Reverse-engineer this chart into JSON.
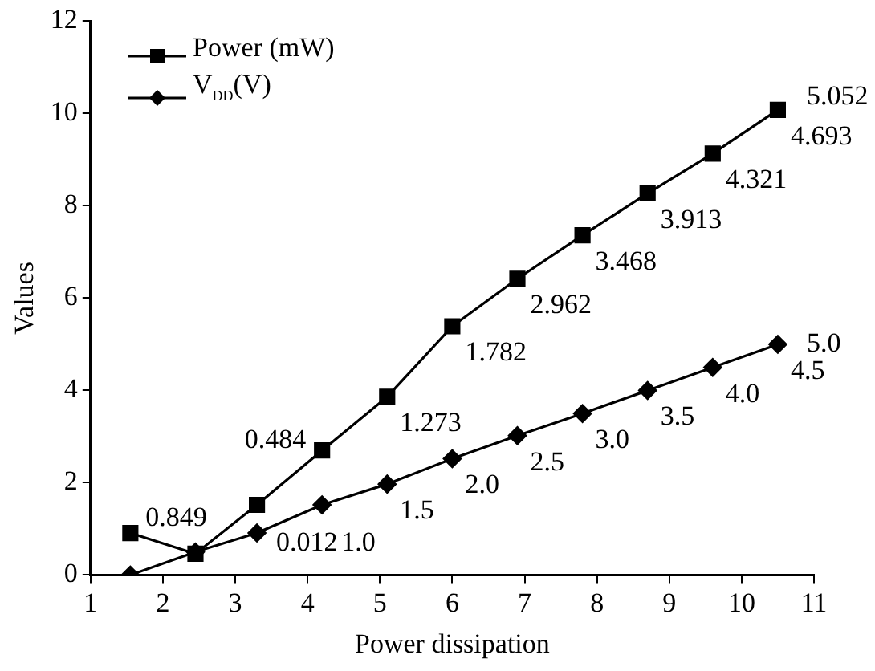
{
  "chart_data": {
    "type": "line",
    "xlabel": "Power dissipation",
    "ylabel": "Values",
    "xlim": [
      1,
      11
    ],
    "xticks": [
      1,
      2,
      3,
      4,
      5,
      6,
      7,
      8,
      9,
      10,
      11
    ],
    "ylim": [
      0,
      12
    ],
    "yticks": [
      0,
      2,
      4,
      6,
      8,
      10,
      12
    ],
    "x": [
      1.55,
      2.45,
      3.3,
      4.2,
      5.1,
      6.0,
      6.9,
      7.8,
      8.7,
      9.6,
      10.5
    ],
    "series": [
      {
        "name": "Power (mW)",
        "color": "#000000",
        "marker": "square",
        "values": [
          0.91,
          0.46,
          1.52,
          2.7,
          3.86,
          5.39,
          6.42,
          7.36,
          8.27,
          9.13,
          10.08
        ]
      },
      {
        "name": "V$_{DD}$(V)",
        "color": "#000000",
        "marker": "diamond",
        "values": [
          0,
          0.5,
          0.91,
          1.52,
          1.97,
          2.52,
          3.02,
          3.5,
          4.0,
          4.5,
          5.0
        ]
      }
    ],
    "annotations": [
      "0.849",
      "0.012",
      "0.484",
      "1.273",
      "1.782",
      "2.962",
      "3.468",
      "3.913",
      "4.321",
      "4.693",
      "5.052",
      "1.0",
      "1.5",
      "2.0",
      "2.5",
      "3.0",
      "3.5",
      "4.0",
      "4.5",
      "5.0"
    ],
    "grid": false,
    "legend": "top left"
  }
}
